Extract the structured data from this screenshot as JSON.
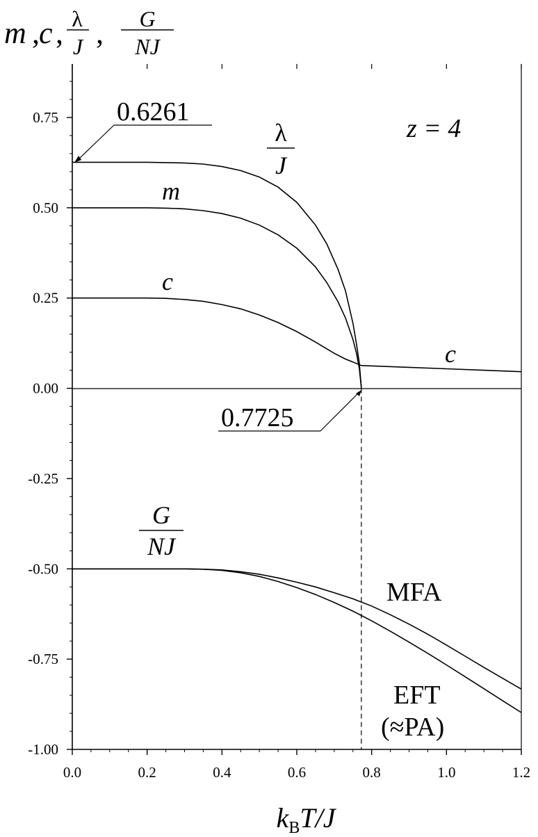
{
  "chart_data": {
    "type": "line",
    "y_title": {
      "m": "m",
      "c": "c",
      "lambda_num": "λ",
      "lambda_den": "J",
      "g_num": "G",
      "g_den": "NJ",
      "sep": ","
    },
    "x_title": {
      "k": "k",
      "sub": "B",
      "rest": "T/J"
    },
    "xlim": [
      0.0,
      1.2
    ],
    "ylim": [
      -1.0,
      0.9
    ],
    "x_ticks": [
      "0.0",
      "0.2",
      "0.4",
      "0.6",
      "0.8",
      "1.0",
      "1.2"
    ],
    "y_ticks": [
      "-1.00",
      "-0.75",
      "-0.50",
      "-0.25",
      "0.00",
      "0.25",
      "0.50",
      "0.75"
    ],
    "grid": false,
    "annotations": {
      "z": "z = 4",
      "lambda0": "0.6261",
      "tc": "0.7725",
      "lambda_label_num": "λ",
      "lambda_label_den": "J",
      "m_label": "m",
      "c_label": "c",
      "c_label_high": "c",
      "g_label_num": "G",
      "g_label_den": "NJ",
      "mfa": "MFA",
      "eft_1": "EFT",
      "eft_2": "(≈PA)"
    },
    "series": [
      {
        "key": "lambda",
        "x": [
          0.0,
          0.1,
          0.2,
          0.3,
          0.35,
          0.4,
          0.45,
          0.5,
          0.55,
          0.6,
          0.65,
          0.68,
          0.71,
          0.73,
          0.75,
          0.76,
          0.767,
          0.7725
        ],
        "y": [
          0.6261,
          0.6261,
          0.626,
          0.624,
          0.621,
          0.614,
          0.603,
          0.585,
          0.557,
          0.515,
          0.452,
          0.4,
          0.33,
          0.27,
          0.18,
          0.12,
          0.07,
          0.0
        ]
      },
      {
        "key": "m",
        "x": [
          0.0,
          0.1,
          0.2,
          0.25,
          0.3,
          0.35,
          0.4,
          0.45,
          0.5,
          0.55,
          0.6,
          0.65,
          0.68,
          0.71,
          0.73,
          0.75,
          0.76,
          0.767,
          0.7725
        ],
        "y": [
          0.5,
          0.5,
          0.5,
          0.499,
          0.497,
          0.492,
          0.484,
          0.471,
          0.452,
          0.425,
          0.388,
          0.336,
          0.293,
          0.24,
          0.195,
          0.135,
          0.095,
          0.055,
          0.0
        ]
      },
      {
        "key": "c",
        "x": [
          0.0,
          0.1,
          0.2,
          0.25,
          0.3,
          0.35,
          0.4,
          0.45,
          0.5,
          0.55,
          0.6,
          0.65,
          0.7,
          0.73,
          0.75,
          0.7725
        ],
        "y": [
          0.25,
          0.25,
          0.25,
          0.249,
          0.246,
          0.241,
          0.232,
          0.22,
          0.203,
          0.182,
          0.157,
          0.128,
          0.097,
          0.081,
          0.073,
          0.063
        ]
      },
      {
        "key": "c_high",
        "x": [
          0.7725,
          0.9,
          1.0,
          1.1,
          1.2
        ],
        "y": [
          0.063,
          0.058,
          0.054,
          0.05,
          0.046
        ]
      },
      {
        "key": "mfa",
        "x": [
          0.0,
          0.1,
          0.2,
          0.3,
          0.35,
          0.4,
          0.45,
          0.5,
          0.55,
          0.6,
          0.65,
          0.7,
          0.75,
          0.8,
          0.85,
          0.9,
          0.95,
          1.0,
          1.05,
          1.1,
          1.15,
          1.2
        ],
        "y": [
          -0.5,
          -0.5,
          -0.5,
          -0.5,
          -0.501,
          -0.503,
          -0.508,
          -0.515,
          -0.525,
          -0.537,
          -0.55,
          -0.566,
          -0.583,
          -0.603,
          -0.627,
          -0.653,
          -0.681,
          -0.711,
          -0.742,
          -0.773,
          -0.803,
          -0.833
        ]
      },
      {
        "key": "eft",
        "x": [
          0.0,
          0.1,
          0.2,
          0.3,
          0.35,
          0.4,
          0.45,
          0.5,
          0.55,
          0.6,
          0.65,
          0.7,
          0.75,
          0.8,
          0.85,
          0.9,
          0.95,
          1.0,
          1.05,
          1.1,
          1.15,
          1.2
        ],
        "y": [
          -0.5,
          -0.5,
          -0.5,
          -0.5,
          -0.501,
          -0.504,
          -0.511,
          -0.521,
          -0.535,
          -0.552,
          -0.571,
          -0.593,
          -0.617,
          -0.644,
          -0.673,
          -0.703,
          -0.734,
          -0.766,
          -0.799,
          -0.832,
          -0.865,
          -0.898
        ]
      }
    ]
  }
}
